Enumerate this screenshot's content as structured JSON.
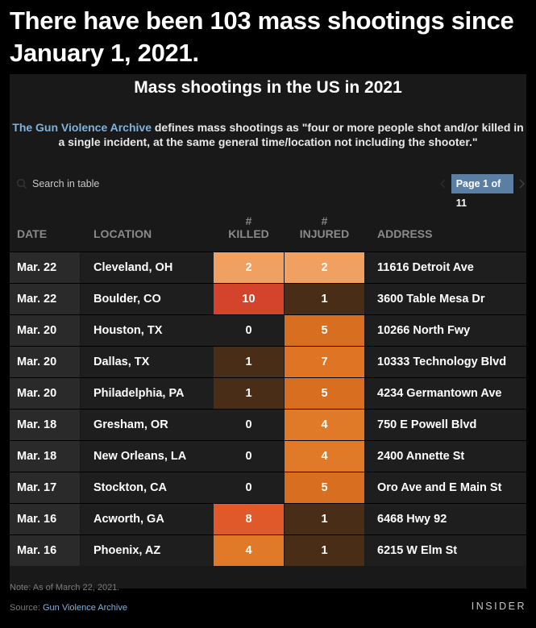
{
  "headline": "There have been 103 mass shootings since January 1, 2021.",
  "subtitle": "Mass shootings in the US in 2021",
  "description": {
    "link_text": "The Gun Violence Archive",
    "text": " defines mass shootings as \"four or more people shot and/or killed in a single incident, at the same general time/location not including the shooter.\""
  },
  "search": {
    "placeholder": "Search in table"
  },
  "pagination": {
    "label": "Page 1 of 11"
  },
  "columns": {
    "date": "DATE",
    "location": "LOCATION",
    "killed_prefix": "#",
    "killed": "KILLED",
    "injured_prefix": "#",
    "injured": "INJURED",
    "address": "ADDRESS"
  },
  "rows": [
    {
      "date": "Mar. 22",
      "location": "Cleveland, OH",
      "killed": "2",
      "injured": "2",
      "address": "11616 Detroit Ave"
    },
    {
      "date": "Mar. 22",
      "location": "Boulder, CO",
      "killed": "10",
      "injured": "1",
      "address": "3600 Table Mesa Dr"
    },
    {
      "date": "Mar. 20",
      "location": "Houston, TX",
      "killed": "0",
      "injured": "5",
      "address": "10266 North Fwy"
    },
    {
      "date": "Mar. 20",
      "location": "Dallas, TX",
      "killed": "1",
      "injured": "7",
      "address": "10333 Technology Blvd"
    },
    {
      "date": "Mar. 20",
      "location": "Philadelphia, PA",
      "killed": "1",
      "injured": "5",
      "address": "4234 Germantown Ave"
    },
    {
      "date": "Mar. 18",
      "location": "Gresham, OR",
      "killed": "0",
      "injured": "4",
      "address": "750 E Powell Blvd"
    },
    {
      "date": "Mar. 18",
      "location": "New Orleans, LA",
      "killed": "0",
      "injured": "4",
      "address": "2400 Annette St"
    },
    {
      "date": "Mar. 17",
      "location": "Stockton, CA",
      "killed": "0",
      "injured": "5",
      "address": "Oro Ave and E Main St"
    },
    {
      "date": "Mar. 16",
      "location": "Acworth, GA",
      "killed": "8",
      "injured": "1",
      "address": "6468 Hwy 92"
    },
    {
      "date": "Mar. 16",
      "location": "Phoenix, AZ",
      "killed": "4",
      "injured": "1",
      "address": "6215 W Elm St"
    }
  ],
  "heat_colors": {
    "0": "#1e1e1e",
    "1": "#4a2d16",
    "2": "#f0a060",
    "4": "#e07a28",
    "5": "#d86e20",
    "7": "#de7424",
    "8": "#e0592a",
    "10": "#d4432c"
  },
  "footer": {
    "note": "Note: As of March 22, 2021.",
    "source_prefix": "Source: ",
    "source_link": "Gun Violence Archive",
    "logo": "INSIDER"
  }
}
